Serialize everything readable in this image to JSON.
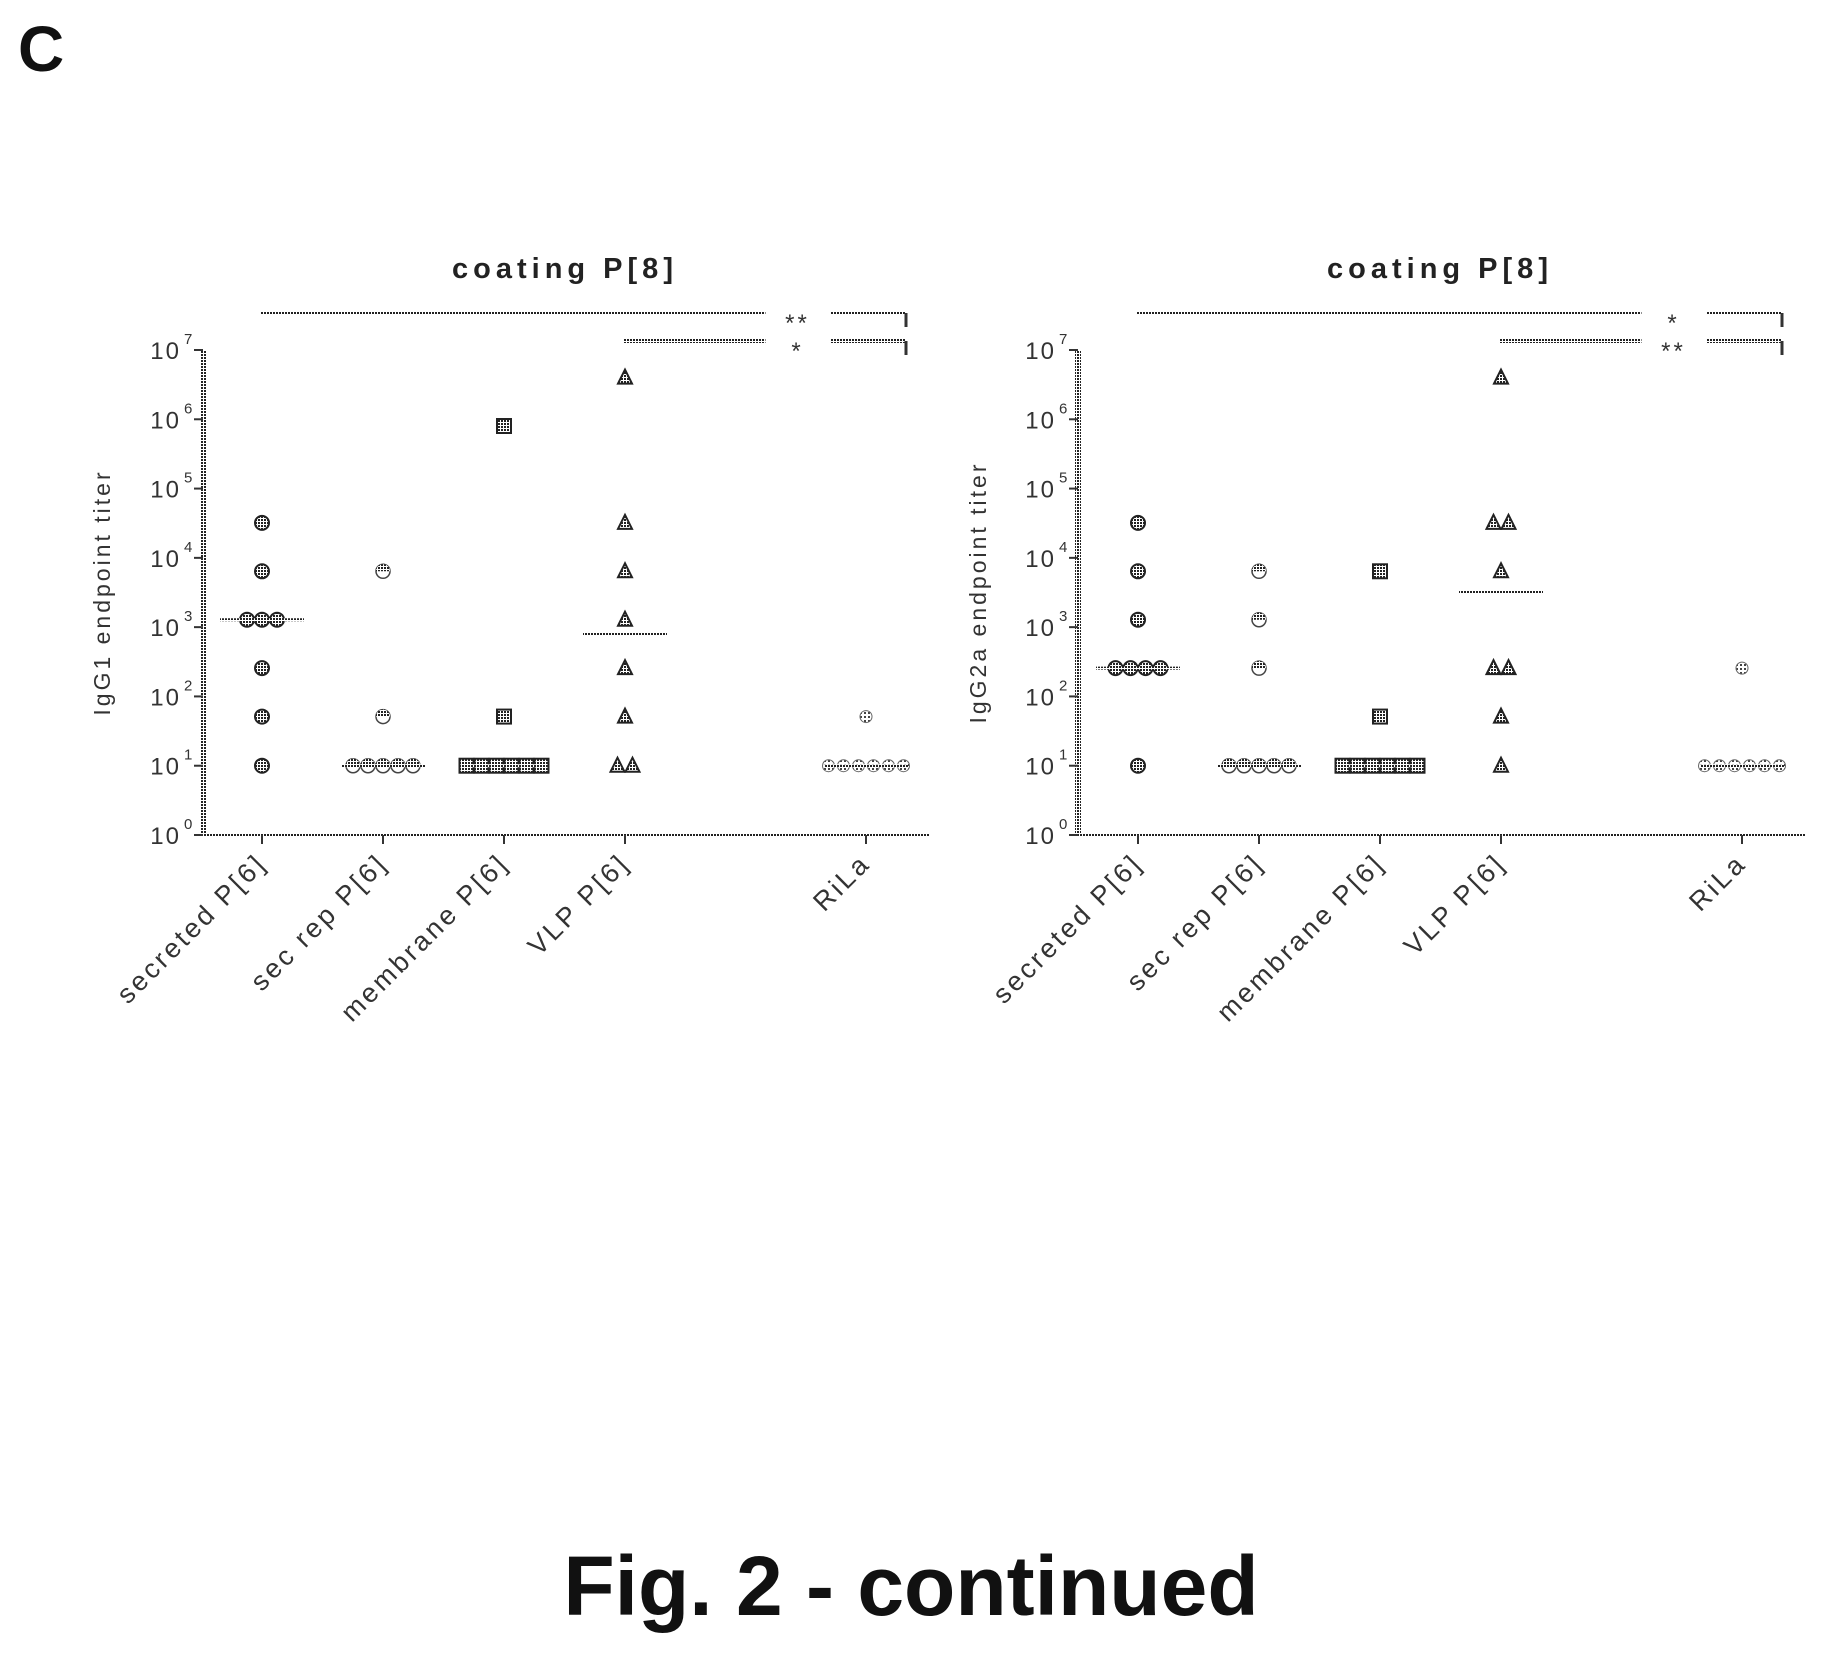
{
  "panel_label": "C",
  "figure_caption": "Fig. 2 - continued",
  "chart_data": [
    {
      "type": "scatter",
      "title": "coating P[8]",
      "ylabel": "IgG1 endpoint titer",
      "yscale": "log",
      "ylim": [
        1,
        10000000
      ],
      "yticks": [
        {
          "base": "10",
          "exp": "0",
          "value": 1
        },
        {
          "base": "10",
          "exp": "1",
          "value": 10
        },
        {
          "base": "10",
          "exp": "2",
          "value": 100
        },
        {
          "base": "10",
          "exp": "3",
          "value": 1000
        },
        {
          "base": "10",
          "exp": "4",
          "value": 10000
        },
        {
          "base": "10",
          "exp": "5",
          "value": 100000
        },
        {
          "base": "10",
          "exp": "6",
          "value": 1000000
        },
        {
          "base": "10",
          "exp": "7",
          "value": 10000000
        }
      ],
      "categories": [
        "secreted P[6]",
        "sec rep P[6]",
        "membrane P[6]",
        "VLP P[6]",
        "RiLa"
      ],
      "series": [
        {
          "category": "secreted P[6]",
          "marker": "circle-hatched",
          "points": [
            32000,
            6400,
            1280,
            1280,
            1280,
            256,
            51.2,
            10
          ],
          "median": 1280
        },
        {
          "category": "sec rep P[6]",
          "marker": "circle-half",
          "points": [
            6400,
            51.2,
            10,
            10,
            10,
            10,
            10
          ],
          "median": 10
        },
        {
          "category": "membrane P[6]",
          "marker": "square",
          "points": [
            800000,
            51.2,
            10,
            10,
            10,
            10,
            10,
            10
          ],
          "median": 10
        },
        {
          "category": "VLP P[6]",
          "marker": "triangle",
          "points": [
            4000000,
            32000,
            6400,
            1280,
            256,
            51.2,
            10,
            10
          ],
          "median": 800
        },
        {
          "category": "RiLa",
          "marker": "diamond",
          "points": [
            51.2,
            10,
            10,
            10,
            10,
            10,
            10
          ],
          "median": 10
        }
      ],
      "significance": [
        {
          "from": "secreted P[6]",
          "to": "RiLa",
          "label": "**"
        },
        {
          "from": "VLP P[6]",
          "to": "RiLa",
          "label": "*"
        }
      ]
    },
    {
      "type": "scatter",
      "title": "coating P[8]",
      "ylabel": "IgG2a endpoint titer",
      "yscale": "log",
      "ylim": [
        1,
        10000000
      ],
      "yticks": [
        {
          "base": "10",
          "exp": "0",
          "value": 1
        },
        {
          "base": "10",
          "exp": "1",
          "value": 10
        },
        {
          "base": "10",
          "exp": "2",
          "value": 100
        },
        {
          "base": "10",
          "exp": "3",
          "value": 1000
        },
        {
          "base": "10",
          "exp": "4",
          "value": 10000
        },
        {
          "base": "10",
          "exp": "5",
          "value": 100000
        },
        {
          "base": "10",
          "exp": "6",
          "value": 1000000
        },
        {
          "base": "10",
          "exp": "7",
          "value": 10000000
        }
      ],
      "categories": [
        "secreted P[6]",
        "sec rep P[6]",
        "membrane P[6]",
        "VLP P[6]",
        "RiLa"
      ],
      "series": [
        {
          "category": "secreted P[6]",
          "marker": "circle-hatched",
          "points": [
            32000,
            6400,
            1280,
            256,
            256,
            256,
            256,
            10
          ],
          "median": 256
        },
        {
          "category": "sec rep P[6]",
          "marker": "circle-half",
          "points": [
            6400,
            1280,
            256,
            10,
            10,
            10,
            10,
            10
          ],
          "median": 10
        },
        {
          "category": "membrane P[6]",
          "marker": "square",
          "points": [
            6400,
            51.2,
            10,
            10,
            10,
            10,
            10,
            10
          ],
          "median": 10
        },
        {
          "category": "VLP P[6]",
          "marker": "triangle",
          "points": [
            4000000,
            32000,
            32000,
            6400,
            256,
            256,
            51.2,
            10
          ],
          "median": 3200
        },
        {
          "category": "RiLa",
          "marker": "diamond",
          "points": [
            256,
            10,
            10,
            10,
            10,
            10,
            10
          ],
          "median": 10
        }
      ],
      "significance": [
        {
          "from": "secreted P[6]",
          "to": "RiLa",
          "label": "*"
        },
        {
          "from": "VLP P[6]",
          "to": "RiLa",
          "label": "**"
        }
      ]
    }
  ]
}
